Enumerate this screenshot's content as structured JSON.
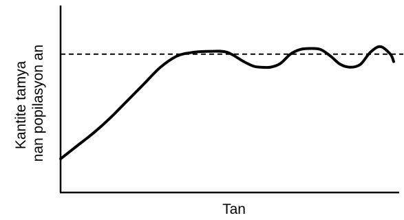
{
  "colors": {
    "line": "#000000",
    "background": "#ffffff"
  },
  "chart_data": {
    "type": "line",
    "title": "",
    "xlabel": "Tan",
    "ylabel_lines": [
      "Kantite tamya",
      "nan popilasyon an"
    ],
    "xlim": [
      0,
      100
    ],
    "ylim": [
      0,
      100
    ],
    "grid": false,
    "ticks": false,
    "reference_line": {
      "y": 74,
      "style": "dashed"
    },
    "series": [
      {
        "x": [
          0,
          5,
          10,
          15,
          20,
          25,
          30,
          35,
          40,
          45,
          50,
          55,
          58,
          60,
          63,
          66,
          69,
          72,
          75,
          78,
          81,
          84,
          87,
          90,
          93,
          96,
          99,
          100
        ],
        "y": [
          18,
          25,
          32,
          40,
          49,
          58,
          67,
          73,
          75,
          75.5,
          75,
          70,
          67.5,
          67,
          67,
          69,
          74,
          76.5,
          77,
          76.5,
          73,
          68.5,
          67,
          68.5,
          75,
          78,
          74,
          70
        ]
      }
    ]
  }
}
